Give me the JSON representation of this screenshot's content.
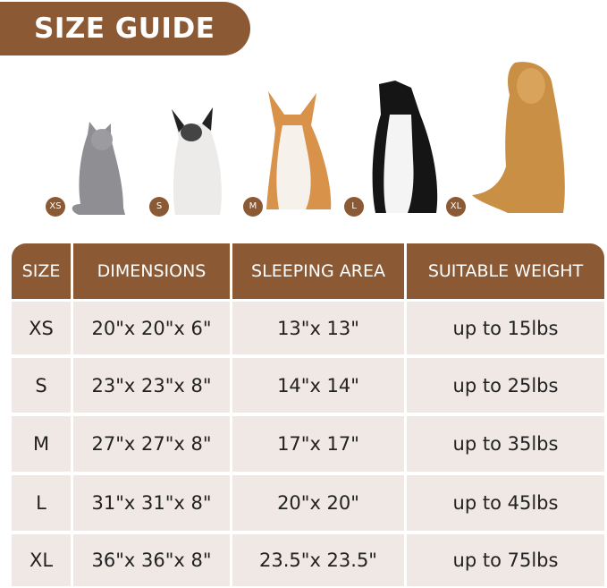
{
  "title": "SIZE GUIDE",
  "colors": {
    "brand": "#8b5a35",
    "cell": "#efe8e4"
  },
  "animals": [
    {
      "badge": "XS",
      "icon": "cat-icon"
    },
    {
      "badge": "S",
      "icon": "french-bulldog-icon"
    },
    {
      "badge": "M",
      "icon": "corgi-icon"
    },
    {
      "badge": "L",
      "icon": "border-collie-icon"
    },
    {
      "badge": "XL",
      "icon": "golden-retriever-icon"
    }
  ],
  "table": {
    "headers": [
      "SIZE",
      "DIMENSIONS",
      "SLEEPING AREA",
      "SUITABLE WEIGHT"
    ],
    "rows": [
      [
        "XS",
        "20\"x 20\"x 6\"",
        "13\"x 13\"",
        "up to 15lbs"
      ],
      [
        "S",
        "23\"x 23\"x 8\"",
        "14\"x 14\"",
        "up to 25lbs"
      ],
      [
        "M",
        "27\"x 27\"x 8\"",
        "17\"x 17\"",
        "up to 35lbs"
      ],
      [
        "L",
        "31\"x 31\"x 8\"",
        "20\"x 20\"",
        "up to 45lbs"
      ],
      [
        "XL",
        "36\"x 36\"x 8\"",
        "23.5\"x 23.5\"",
        "up to 75lbs"
      ]
    ]
  }
}
